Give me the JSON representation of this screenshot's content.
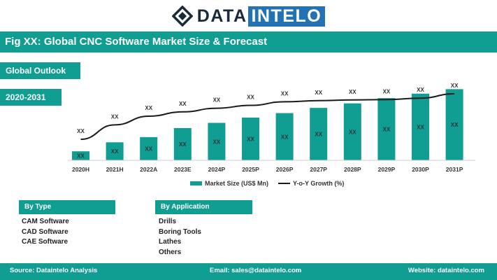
{
  "brand": {
    "name_part1": "DATA",
    "name_part2": "INTELO"
  },
  "figure_title": "Fig XX: Global CNC Software Market Size & Forecast",
  "tags": {
    "outlook": "Global Outlook",
    "period": "2020-2031"
  },
  "chart_data": {
    "type": "bar",
    "categories": [
      "2020H",
      "2021H",
      "2022A",
      "2023E",
      "2024P",
      "2025P",
      "2026P",
      "2027P",
      "2028P",
      "2029P",
      "2030P",
      "2031P"
    ],
    "series": [
      {
        "name": "Market Size (US$ Mn)",
        "type": "bar",
        "values": [
          1.2,
          2.4,
          3.1,
          4.3,
          5.0,
          5.7,
          6.3,
          7.0,
          7.6,
          8.3,
          8.9,
          9.5
        ],
        "labels": [
          "XX",
          "XX",
          "XX",
          "XX",
          "XX",
          "XX",
          "XX",
          "XX",
          "XX",
          "XX",
          "XX",
          "XX"
        ]
      },
      {
        "name": "Y-o-Y Growth (%)",
        "type": "line",
        "values": [
          3.5,
          5.5,
          6.7,
          7.3,
          7.8,
          8.2,
          8.7,
          8.85,
          8.95,
          9.0,
          9.2,
          9.8
        ],
        "labels": [
          "XX",
          "XX",
          "XX",
          "XX",
          "XX",
          "XX",
          "XX",
          "XX",
          "XX",
          "XX",
          "XX",
          "XX"
        ]
      }
    ],
    "legend_position": "bottom",
    "grid": false,
    "colors": {
      "bar": "#0f9e91",
      "line": "#1a1a1a"
    }
  },
  "segments": {
    "by_type": {
      "heading": "By Type",
      "items": [
        "CAM Software",
        "CAD Software",
        "CAE Software"
      ]
    },
    "by_application": {
      "heading": "By Application",
      "items": [
        "Drills",
        "Boring Tools",
        "Lathes",
        "Others"
      ]
    }
  },
  "footer": {
    "source": "Source: Dataintelo Analysis",
    "email": "Email: sales@dataintelo.com",
    "website": "Website: dataintelo.com"
  }
}
